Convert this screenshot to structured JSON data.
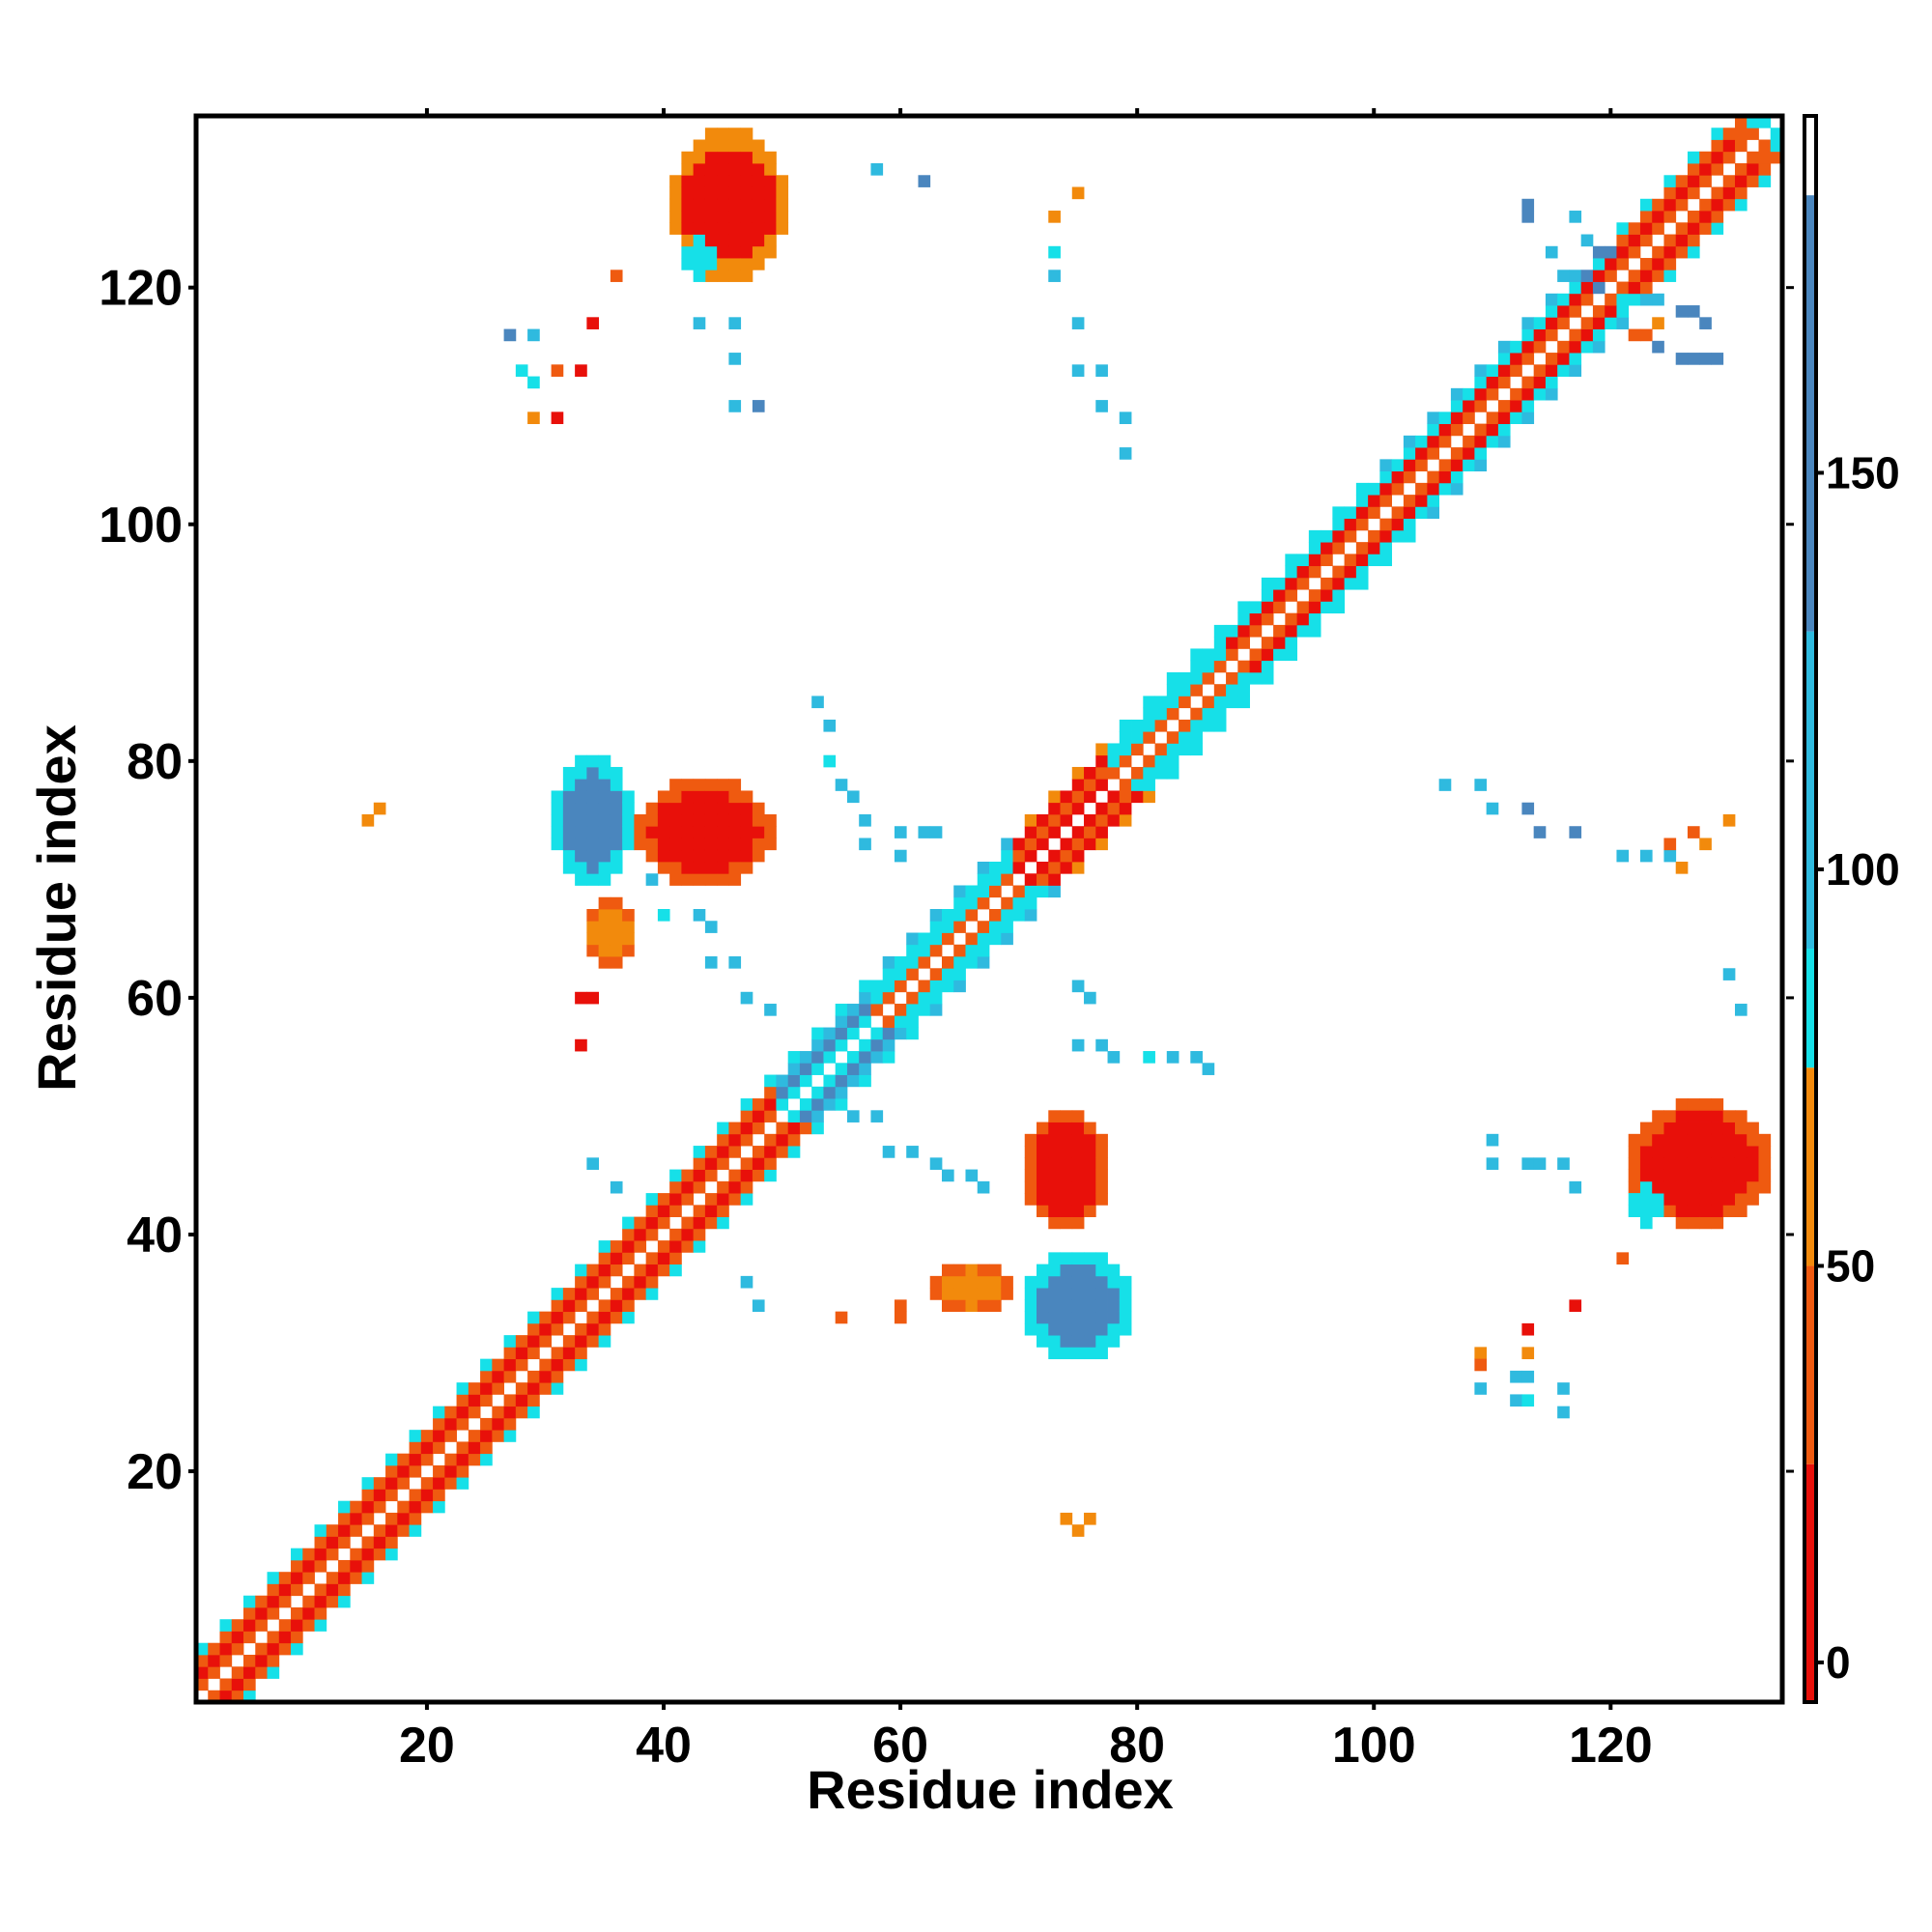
{
  "chart_data": {
    "type": "heatmap",
    "title": "",
    "xlabel": "Residue index",
    "ylabel": "Residue index",
    "xlim": [
      1,
      134
    ],
    "ylim": [
      1,
      134
    ],
    "x_ticks": [
      20,
      40,
      60,
      80,
      100,
      120
    ],
    "y_ticks": [
      20,
      40,
      60,
      80,
      100,
      120
    ],
    "grid": false,
    "colorbar": {
      "placement": "right",
      "range": [
        -5,
        195
      ],
      "ticks": [
        0,
        50,
        100,
        150
      ],
      "bands": [
        {
          "from": -5,
          "to": 25,
          "color": "#e8100a"
        },
        {
          "from": 25,
          "to": 50,
          "color": "#ef5a10"
        },
        {
          "from": 50,
          "to": 75,
          "color": "#f28a0c"
        },
        {
          "from": 75,
          "to": 90,
          "color": "#16e0e8"
        },
        {
          "from": 90,
          "to": 130,
          "color": "#2fbadf"
        },
        {
          "from": 130,
          "to": 185,
          "color": "#4a86be"
        },
        {
          "from": 185,
          "to": 195,
          "color": "#ffffff"
        }
      ]
    },
    "cell_palette": {
      "r": "#e8100a",
      "o": "#ef5a10",
      "y": "#f28a0c",
      "c": "#16e0e8",
      "t": "#2fbadf",
      "b": "#4a86be"
    },
    "diagonal_pattern": {
      "note": "values along offsets from the main diagonal, by residue range",
      "ranges": [
        {
          "from": 1,
          "to": 50,
          "offset_1": "o",
          "offset_2": "r",
          "offset_3": "o",
          "offset_4": "c"
        },
        {
          "from": 50,
          "to": 58,
          "offset_1": "c",
          "offset_2": "b",
          "offset_3": "t",
          "offset_4": "c"
        },
        {
          "from": 58,
          "to": 70,
          "offset_1": "o",
          "offset_2": "c",
          "offset_3": "c",
          "offset_4": "t"
        },
        {
          "from": 70,
          "to": 78,
          "offset_1": "r",
          "offset_2": "o",
          "offset_3": "r",
          "offset_4": "y"
        },
        {
          "from": 78,
          "to": 88,
          "offset_1": "o",
          "offset_2": "c",
          "offset_3": "c",
          "offset_4": "c"
        },
        {
          "from": 88,
          "to": 100,
          "offset_1": "o",
          "offset_2": "r",
          "offset_3": "c",
          "offset_4": "c"
        },
        {
          "from": 100,
          "to": 120,
          "offset_1": "o",
          "offset_2": "r",
          "offset_3": "c",
          "offset_4": "t"
        },
        {
          "from": 120,
          "to": 134,
          "offset_1": "o",
          "offset_2": "r",
          "offset_3": "o",
          "offset_4": "c"
        }
      ]
    },
    "off_diagonal_blocks": [
      {
        "x": [
          41,
          50
        ],
        "y": [
          121,
          133
        ],
        "value": "r",
        "edge": "y"
      },
      {
        "x": [
          42,
          44
        ],
        "y": [
          121,
          124
        ],
        "value": "c"
      },
      {
        "x": [
          31,
          37
        ],
        "y": [
          70,
          80
        ],
        "value": "b",
        "edge": "c"
      },
      {
        "x": [
          38,
          49
        ],
        "y": [
          70,
          78
        ],
        "value": "r",
        "edge": "o"
      },
      {
        "x": [
          34,
          37
        ],
        "y": [
          63,
          68
        ],
        "value": "y",
        "edge": "o"
      },
      {
        "x": [
          71,
          79
        ],
        "y": [
          30,
          38
        ],
        "value": "b",
        "edge": "c"
      },
      {
        "x": [
          71,
          77
        ],
        "y": [
          41,
          50
        ],
        "value": "r",
        "edge": "o"
      },
      {
        "x": [
          63,
          69
        ],
        "y": [
          34,
          37
        ],
        "value": "y",
        "edge": "o"
      },
      {
        "x": [
          122,
          133
        ],
        "y": [
          41,
          51
        ],
        "value": "r",
        "edge": "o"
      },
      {
        "x": [
          122,
          124
        ],
        "y": [
          41,
          44
        ],
        "value": "c"
      }
    ],
    "scattered_points": [
      {
        "x": 27,
        "y": 116,
        "v": "b"
      },
      {
        "x": 29,
        "y": 116,
        "v": "t"
      },
      {
        "x": 28,
        "y": 113,
        "v": "c"
      },
      {
        "x": 29,
        "y": 112,
        "v": "c"
      },
      {
        "x": 31,
        "y": 113,
        "v": "o"
      },
      {
        "x": 33,
        "y": 113,
        "v": "r"
      },
      {
        "x": 29,
        "y": 109,
        "v": "y"
      },
      {
        "x": 31,
        "y": 109,
        "v": "r"
      },
      {
        "x": 34,
        "y": 117,
        "v": "r"
      },
      {
        "x": 36,
        "y": 121,
        "v": "o"
      },
      {
        "x": 43,
        "y": 117,
        "v": "t"
      },
      {
        "x": 46,
        "y": 117,
        "v": "t"
      },
      {
        "x": 46,
        "y": 114,
        "v": "t"
      },
      {
        "x": 46,
        "y": 110,
        "v": "t"
      },
      {
        "x": 48,
        "y": 110,
        "v": "b"
      },
      {
        "x": 58,
        "y": 130,
        "v": "t"
      },
      {
        "x": 62,
        "y": 129,
        "v": "b"
      },
      {
        "x": 73,
        "y": 126,
        "v": "y"
      },
      {
        "x": 75,
        "y": 128,
        "v": "y"
      },
      {
        "x": 73,
        "y": 123,
        "v": "c"
      },
      {
        "x": 73,
        "y": 121,
        "v": "t"
      },
      {
        "x": 75,
        "y": 117,
        "v": "t"
      },
      {
        "x": 75,
        "y": 113,
        "v": "t"
      },
      {
        "x": 77,
        "y": 113,
        "v": "t"
      },
      {
        "x": 77,
        "y": 110,
        "v": "t"
      },
      {
        "x": 79,
        "y": 109,
        "v": "t"
      },
      {
        "x": 79,
        "y": 106,
        "v": "t"
      },
      {
        "x": 15,
        "y": 75,
        "v": "y"
      },
      {
        "x": 16,
        "y": 76,
        "v": "y"
      },
      {
        "x": 33,
        "y": 60,
        "v": "r"
      },
      {
        "x": 34,
        "y": 60,
        "v": "r"
      },
      {
        "x": 33,
        "y": 56,
        "v": "r"
      },
      {
        "x": 34,
        "y": 46,
        "v": "t"
      },
      {
        "x": 36,
        "y": 44,
        "v": "t"
      },
      {
        "x": 39,
        "y": 70,
        "v": "t"
      },
      {
        "x": 40,
        "y": 67,
        "v": "c"
      },
      {
        "x": 43,
        "y": 67,
        "v": "t"
      },
      {
        "x": 44,
        "y": 66,
        "v": "t"
      },
      {
        "x": 44,
        "y": 63,
        "v": "t"
      },
      {
        "x": 46,
        "y": 63,
        "v": "t"
      },
      {
        "x": 47,
        "y": 60,
        "v": "t"
      },
      {
        "x": 49,
        "y": 59,
        "v": "t"
      },
      {
        "x": 53,
        "y": 85,
        "v": "t"
      },
      {
        "x": 54,
        "y": 83,
        "v": "t"
      },
      {
        "x": 54,
        "y": 80,
        "v": "c"
      },
      {
        "x": 55,
        "y": 78,
        "v": "t"
      },
      {
        "x": 56,
        "y": 77,
        "v": "t"
      },
      {
        "x": 57,
        "y": 75,
        "v": "t"
      },
      {
        "x": 57,
        "y": 73,
        "v": "t"
      },
      {
        "x": 60,
        "y": 74,
        "v": "t"
      },
      {
        "x": 62,
        "y": 74,
        "v": "t"
      },
      {
        "x": 63,
        "y": 74,
        "v": "t"
      },
      {
        "x": 60,
        "y": 72,
        "v": "t"
      },
      {
        "x": 56,
        "y": 50,
        "v": "t"
      },
      {
        "x": 58,
        "y": 50,
        "v": "t"
      },
      {
        "x": 59,
        "y": 47,
        "v": "t"
      },
      {
        "x": 61,
        "y": 47,
        "v": "t"
      },
      {
        "x": 63,
        "y": 46,
        "v": "t"
      },
      {
        "x": 64,
        "y": 45,
        "v": "t"
      },
      {
        "x": 66,
        "y": 45,
        "v": "t"
      },
      {
        "x": 67,
        "y": 44,
        "v": "t"
      },
      {
        "x": 75,
        "y": 61,
        "v": "t"
      },
      {
        "x": 76,
        "y": 60,
        "v": "t"
      },
      {
        "x": 75,
        "y": 56,
        "v": "t"
      },
      {
        "x": 77,
        "y": 56,
        "v": "t"
      },
      {
        "x": 78,
        "y": 55,
        "v": "t"
      },
      {
        "x": 81,
        "y": 55,
        "v": "c"
      },
      {
        "x": 83,
        "y": 55,
        "v": "t"
      },
      {
        "x": 85,
        "y": 55,
        "v": "t"
      },
      {
        "x": 86,
        "y": 54,
        "v": "t"
      },
      {
        "x": 47,
        "y": 36,
        "v": "t"
      },
      {
        "x": 48,
        "y": 34,
        "v": "t"
      },
      {
        "x": 55,
        "y": 33,
        "v": "o"
      },
      {
        "x": 60,
        "y": 34,
        "v": "o"
      },
      {
        "x": 60,
        "y": 33,
        "v": "o"
      },
      {
        "x": 74,
        "y": 16,
        "v": "y"
      },
      {
        "x": 75,
        "y": 15,
        "v": "y"
      },
      {
        "x": 76,
        "y": 16,
        "v": "y"
      },
      {
        "x": 106,
        "y": 78,
        "v": "t"
      },
      {
        "x": 109,
        "y": 78,
        "v": "t"
      },
      {
        "x": 110,
        "y": 76,
        "v": "t"
      },
      {
        "x": 113,
        "y": 76,
        "v": "b"
      },
      {
        "x": 114,
        "y": 74,
        "v": "b"
      },
      {
        "x": 117,
        "y": 74,
        "v": "b"
      },
      {
        "x": 121,
        "y": 72,
        "v": "t"
      },
      {
        "x": 123,
        "y": 72,
        "v": "t"
      },
      {
        "x": 125,
        "y": 72,
        "v": "t"
      },
      {
        "x": 125,
        "y": 73,
        "v": "o"
      },
      {
        "x": 126,
        "y": 71,
        "v": "y"
      },
      {
        "x": 127,
        "y": 74,
        "v": "o"
      },
      {
        "x": 128,
        "y": 73,
        "v": "y"
      },
      {
        "x": 130,
        "y": 75,
        "v": "y"
      },
      {
        "x": 130,
        "y": 62,
        "v": "t"
      },
      {
        "x": 131,
        "y": 59,
        "v": "t"
      },
      {
        "x": 110,
        "y": 48,
        "v": "t"
      },
      {
        "x": 110,
        "y": 46,
        "v": "t"
      },
      {
        "x": 113,
        "y": 46,
        "v": "t"
      },
      {
        "x": 114,
        "y": 46,
        "v": "t"
      },
      {
        "x": 116,
        "y": 46,
        "v": "t"
      },
      {
        "x": 117,
        "y": 44,
        "v": "t"
      },
      {
        "x": 121,
        "y": 38,
        "v": "o"
      },
      {
        "x": 117,
        "y": 34,
        "v": "r"
      },
      {
        "x": 113,
        "y": 32,
        "v": "r"
      },
      {
        "x": 109,
        "y": 30,
        "v": "y"
      },
      {
        "x": 109,
        "y": 29,
        "v": "o"
      },
      {
        "x": 113,
        "y": 30,
        "v": "y"
      },
      {
        "x": 112,
        "y": 28,
        "v": "t"
      },
      {
        "x": 113,
        "y": 28,
        "v": "t"
      },
      {
        "x": 112,
        "y": 26,
        "v": "t"
      },
      {
        "x": 113,
        "y": 26,
        "v": "c"
      },
      {
        "x": 109,
        "y": 27,
        "v": "t"
      },
      {
        "x": 116,
        "y": 27,
        "v": "t"
      },
      {
        "x": 116,
        "y": 25,
        "v": "t"
      },
      {
        "x": 113,
        "y": 127,
        "v": "b"
      },
      {
        "x": 113,
        "y": 126,
        "v": "b"
      },
      {
        "x": 117,
        "y": 126,
        "v": "t"
      },
      {
        "x": 118,
        "y": 124,
        "v": "t"
      },
      {
        "x": 115,
        "y": 123,
        "v": "t"
      },
      {
        "x": 116,
        "y": 121,
        "v": "t"
      },
      {
        "x": 118,
        "y": 121,
        "v": "b"
      },
      {
        "x": 119,
        "y": 120,
        "v": "b"
      },
      {
        "x": 119,
        "y": 123,
        "v": "b"
      },
      {
        "x": 120,
        "y": 123,
        "v": "b"
      },
      {
        "x": 121,
        "y": 119,
        "v": "c"
      },
      {
        "x": 122,
        "y": 119,
        "v": "c"
      },
      {
        "x": 124,
        "y": 119,
        "v": "t"
      },
      {
        "x": 126,
        "y": 118,
        "v": "b"
      },
      {
        "x": 127,
        "y": 118,
        "v": "b"
      },
      {
        "x": 128,
        "y": 117,
        "v": "b"
      },
      {
        "x": 124,
        "y": 117,
        "v": "y"
      },
      {
        "x": 123,
        "y": 116,
        "v": "o"
      },
      {
        "x": 122,
        "y": 116,
        "v": "o"
      },
      {
        "x": 124,
        "y": 115,
        "v": "b"
      },
      {
        "x": 126,
        "y": 114,
        "v": "b"
      },
      {
        "x": 127,
        "y": 114,
        "v": "b"
      },
      {
        "x": 128,
        "y": 114,
        "v": "b"
      },
      {
        "x": 129,
        "y": 114,
        "v": "b"
      },
      {
        "x": 132,
        "y": 134,
        "v": "c"
      },
      {
        "x": 133,
        "y": 134,
        "v": "c"
      },
      {
        "x": 134,
        "y": 133,
        "v": "c"
      },
      {
        "x": 134,
        "y": 132,
        "v": "c"
      },
      {
        "x": 131,
        "y": 133,
        "v": "o"
      },
      {
        "x": 133,
        "y": 131,
        "v": "o"
      }
    ]
  }
}
